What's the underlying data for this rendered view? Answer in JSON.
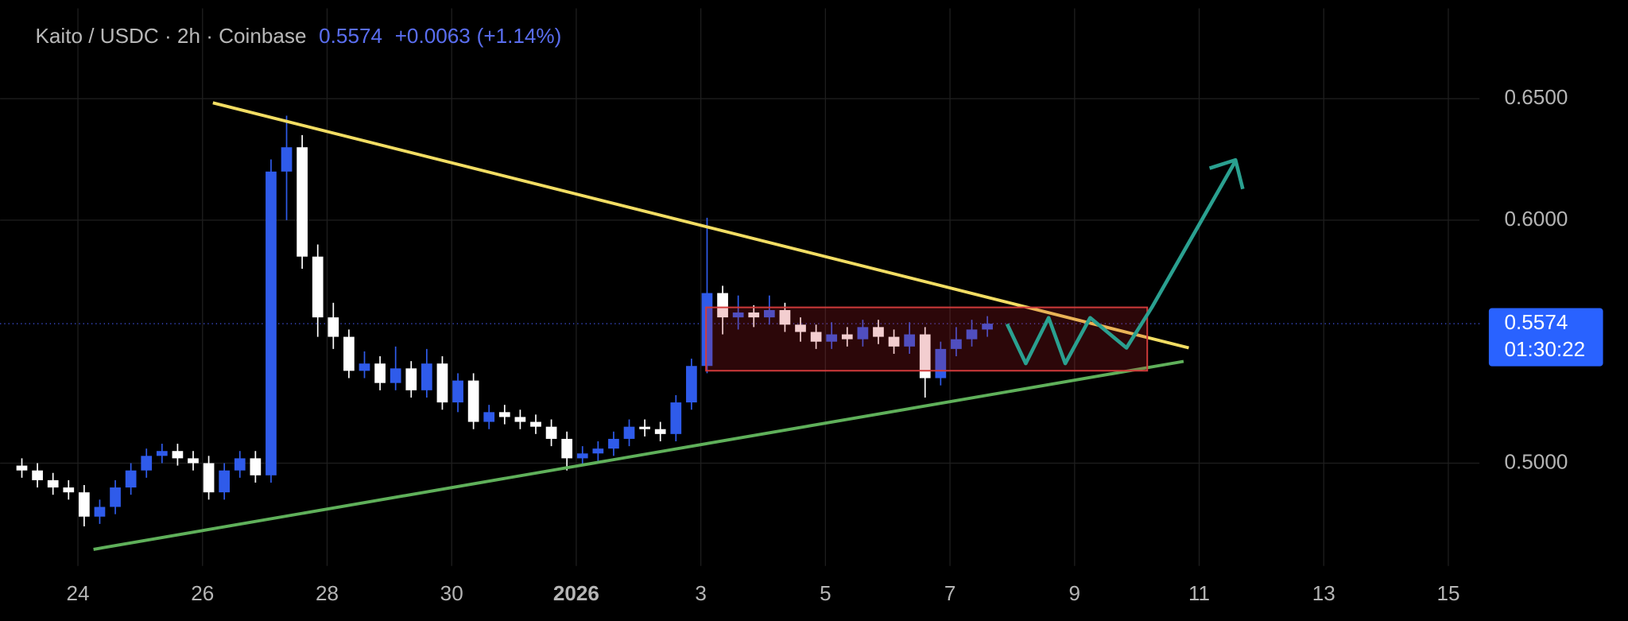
{
  "chart_data": {
    "type": "candlestick",
    "title": "Kaito / USDC · 2h · Coinbase",
    "last_price": 0.5574,
    "change": "+0.0063",
    "change_pct": "(+1.14%)",
    "countdown": "01:30:22",
    "up_color": "#2f5bea",
    "down_color": "#ffffff",
    "grid": true,
    "xlim": [
      -1.25,
      22.5
    ],
    "ylim": [
      0.4577,
      0.6906
    ],
    "xticks": [
      {
        "value": 0,
        "label": "24"
      },
      {
        "value": 2,
        "label": "26"
      },
      {
        "value": 4,
        "label": "28"
      },
      {
        "value": 6,
        "label": "30"
      },
      {
        "value": 8,
        "label": "2026"
      },
      {
        "value": 10,
        "label": "3"
      },
      {
        "value": 12,
        "label": "5"
      },
      {
        "value": 14,
        "label": "7"
      },
      {
        "value": 16,
        "label": "9"
      },
      {
        "value": 18,
        "label": "11"
      },
      {
        "value": 20,
        "label": "13"
      },
      {
        "value": 22,
        "label": "15"
      }
    ],
    "yticks": [
      {
        "value": 0.5,
        "label": "0.5000"
      },
      {
        "value": 0.6,
        "label": "0.6000"
      },
      {
        "value": 0.65,
        "label": "0.6500"
      }
    ],
    "x": [
      -0.9,
      -0.65,
      -0.4,
      -0.15,
      0.1,
      0.35,
      0.6,
      0.85,
      1.1,
      1.35,
      1.6,
      1.85,
      2.1,
      2.35,
      2.6,
      2.85,
      3.1,
      3.35,
      3.6,
      3.85,
      4.1,
      4.35,
      4.6,
      4.85,
      5.1,
      5.35,
      5.6,
      5.85,
      6.1,
      6.35,
      6.6,
      6.85,
      7.1,
      7.35,
      7.6,
      7.85,
      8.1,
      8.35,
      8.6,
      8.85,
      9.1,
      9.35,
      9.6,
      9.85,
      10.1,
      10.35,
      10.6,
      10.85,
      11.1,
      11.35,
      11.6,
      11.85,
      12.1,
      12.35,
      12.6,
      12.85,
      13.1,
      13.35,
      13.6,
      13.85,
      14.1,
      14.35,
      14.6
    ],
    "open": [
      0.499,
      0.497,
      0.493,
      0.49,
      0.488,
      0.478,
      0.482,
      0.49,
      0.497,
      0.503,
      0.505,
      0.502,
      0.5,
      0.488,
      0.497,
      0.502,
      0.495,
      0.62,
      0.63,
      0.585,
      0.56,
      0.552,
      0.538,
      0.541,
      0.533,
      0.539,
      0.53,
      0.541,
      0.525,
      0.534,
      0.517,
      0.521,
      0.519,
      0.517,
      0.515,
      0.51,
      0.502,
      0.504,
      0.506,
      0.51,
      0.515,
      0.514,
      0.512,
      0.525,
      0.54,
      0.57,
      0.56,
      0.562,
      0.56,
      0.563,
      0.557,
      0.554,
      0.55,
      0.553,
      0.551,
      0.556,
      0.552,
      0.548,
      0.553,
      0.535,
      0.547,
      0.551,
      0.555
    ],
    "high": [
      0.502,
      0.5,
      0.496,
      0.493,
      0.491,
      0.485,
      0.493,
      0.5,
      0.506,
      0.508,
      0.508,
      0.505,
      0.503,
      0.5,
      0.505,
      0.505,
      0.625,
      0.643,
      0.635,
      0.59,
      0.566,
      0.555,
      0.546,
      0.544,
      0.548,
      0.542,
      0.547,
      0.544,
      0.537,
      0.537,
      0.524,
      0.524,
      0.522,
      0.52,
      0.518,
      0.513,
      0.507,
      0.509,
      0.513,
      0.518,
      0.518,
      0.517,
      0.528,
      0.543,
      0.601,
      0.573,
      0.569,
      0.565,
      0.569,
      0.566,
      0.56,
      0.557,
      0.558,
      0.556,
      0.559,
      0.559,
      0.555,
      0.558,
      0.556,
      0.55,
      0.556,
      0.559,
      0.5605
    ],
    "low": [
      0.494,
      0.49,
      0.487,
      0.485,
      0.474,
      0.475,
      0.479,
      0.487,
      0.494,
      0.5,
      0.499,
      0.497,
      0.485,
      0.485,
      0.494,
      0.492,
      0.492,
      0.6,
      0.58,
      0.552,
      0.547,
      0.535,
      0.535,
      0.53,
      0.53,
      0.527,
      0.527,
      0.522,
      0.521,
      0.514,
      0.514,
      0.516,
      0.514,
      0.512,
      0.507,
      0.497,
      0.499,
      0.501,
      0.503,
      0.507,
      0.511,
      0.509,
      0.509,
      0.522,
      0.537,
      0.553,
      0.555,
      0.556,
      0.557,
      0.554,
      0.55,
      0.547,
      0.547,
      0.548,
      0.548,
      0.549,
      0.545,
      0.545,
      0.527,
      0.532,
      0.544,
      0.548,
      0.552
    ],
    "close": [
      0.497,
      0.493,
      0.49,
      0.488,
      0.478,
      0.482,
      0.49,
      0.497,
      0.503,
      0.505,
      0.502,
      0.5,
      0.488,
      0.497,
      0.502,
      0.495,
      0.62,
      0.63,
      0.585,
      0.56,
      0.552,
      0.538,
      0.541,
      0.533,
      0.539,
      0.53,
      0.541,
      0.525,
      0.534,
      0.517,
      0.521,
      0.519,
      0.517,
      0.515,
      0.51,
      0.502,
      0.504,
      0.506,
      0.51,
      0.515,
      0.514,
      0.512,
      0.525,
      0.54,
      0.57,
      0.56,
      0.562,
      0.56,
      0.563,
      0.557,
      0.554,
      0.55,
      0.553,
      0.551,
      0.556,
      0.552,
      0.548,
      0.553,
      0.535,
      0.547,
      0.551,
      0.555,
      0.5574
    ]
  }
}
